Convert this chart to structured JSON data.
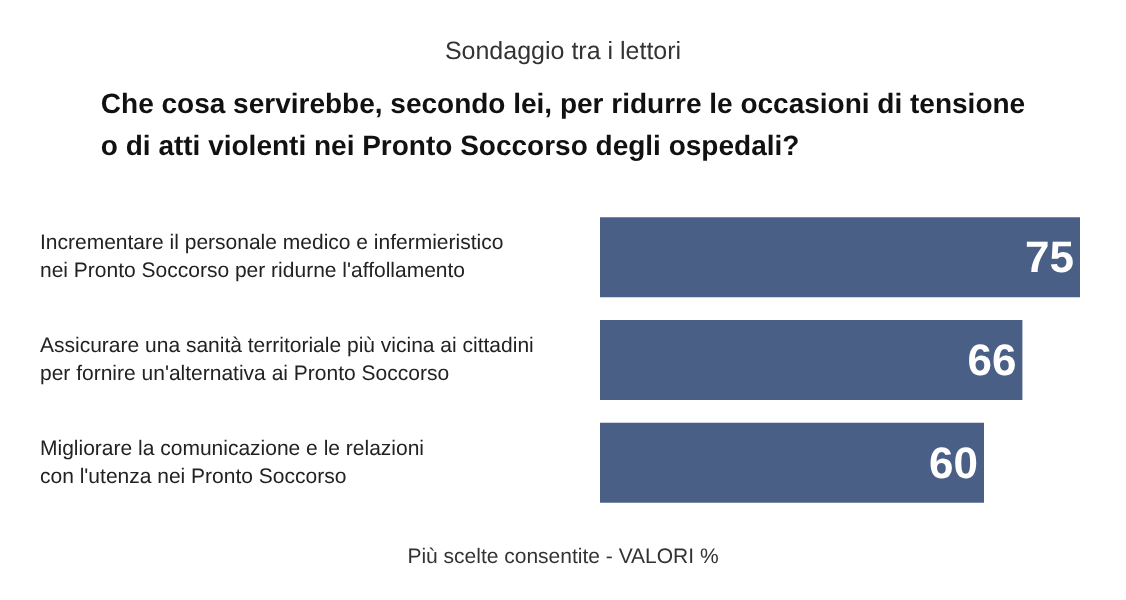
{
  "chart_data": {
    "type": "bar",
    "orientation": "horizontal",
    "subtitle": "Sondaggio tra i lettori",
    "title": "Che cosa servirebbe, secondo lei, per ridurre le occasioni di tensione\no di atti violenti nei Pronto Soccorso degli ospedali?",
    "categories": [
      "Incrementare il personale medico e infermieristico\nnei Pronto Soccorso per ridurne l'affollamento",
      "Assicurare una sanità territoriale più vicina ai cittadini\nper fornire un'alternativa ai Pronto Soccorso",
      "Migliorare la comunicazione e le relazioni\ncon l'utenza nei Pronto Soccorso"
    ],
    "values": [
      75,
      66,
      60
    ],
    "color": "#4a5f86",
    "data_labels": true,
    "annotations": [
      "Più scelte consentite - VALORI %"
    ]
  }
}
